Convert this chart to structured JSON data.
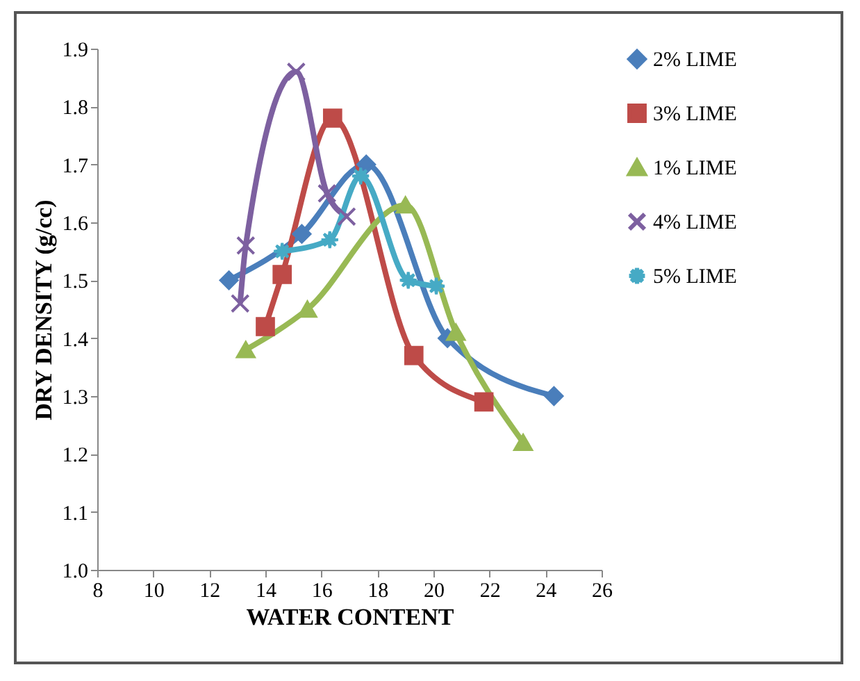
{
  "chart_data": {
    "type": "line",
    "xlabel": "WATER CONTENT",
    "ylabel": "DRY DENSITY (g/cc)",
    "xlim": [
      8,
      26
    ],
    "xticks": [
      8,
      10,
      12,
      14,
      16,
      18,
      20,
      22,
      24,
      26
    ],
    "ylim": [
      1.0,
      1.9
    ],
    "yticks": [
      {
        "value": 1.0,
        "label": "1.0"
      },
      1.1,
      1.2,
      1.3,
      1.4,
      1.5,
      1.6,
      1.7,
      1.8,
      1.9
    ],
    "grid": false,
    "legend": "right",
    "series": [
      {
        "name": "2% LIME",
        "color": "#4a7ebb",
        "marker": "diamond",
        "x": [
          12.7,
          15.3,
          17.6,
          20.5,
          24.3
        ],
        "values": [
          1.5,
          1.58,
          1.7,
          1.4,
          1.3
        ]
      },
      {
        "name": "3% LIME",
        "color": "#be4b48",
        "marker": "square",
        "x": [
          14.0,
          14.6,
          16.4,
          19.3,
          21.8
        ],
        "values": [
          1.42,
          1.51,
          1.78,
          1.37,
          1.29
        ]
      },
      {
        "name": "1% LIME",
        "color": "#98b954",
        "marker": "triangle",
        "x": [
          13.3,
          15.5,
          19.0,
          20.8,
          23.2
        ],
        "values": [
          1.38,
          1.45,
          1.63,
          1.41,
          1.22
        ]
      },
      {
        "name": "4% LIME",
        "color": "#7d60a0",
        "marker": "cross",
        "x": [
          13.1,
          13.3,
          15.1,
          16.2,
          16.9
        ],
        "values": [
          1.46,
          1.56,
          1.86,
          1.65,
          1.61
        ]
      },
      {
        "name": "5% LIME",
        "color": "#46aac5",
        "marker": "star",
        "x": [
          14.6,
          16.3,
          17.4,
          19.1,
          20.1
        ],
        "values": [
          1.55,
          1.57,
          1.68,
          1.5,
          1.49
        ]
      }
    ]
  }
}
